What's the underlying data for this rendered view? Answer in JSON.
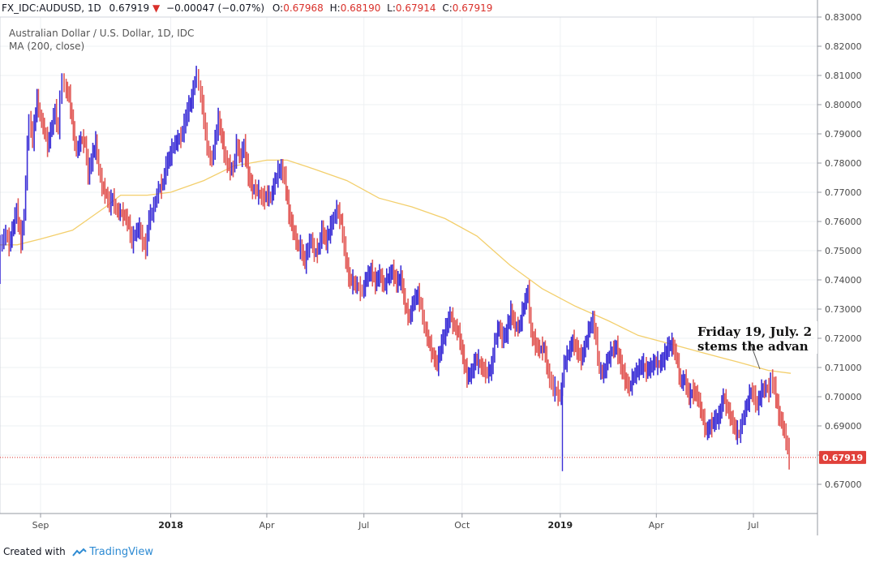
{
  "header": {
    "symbol": "FX_IDC:AUDUSD, 1D",
    "last": "0.67919",
    "change_arrow": "▼",
    "change": "−0.00047 (−0.07%)",
    "o_label": "O:",
    "o": "0.67968",
    "h_label": "H:",
    "h": "0.68190",
    "l_label": "L:",
    "l": "0.67914",
    "c_label": "C:",
    "c": "0.67919"
  },
  "legend": {
    "title": "Australian Dollar / U.S. Dollar, 1D, IDC",
    "indicator": "MA (200, close)"
  },
  "annotation": {
    "line1": "Friday 19, July. 2",
    "line2": "stems the advan"
  },
  "footer": {
    "created_with": "Created with",
    "brand": "TradingView",
    "icon": "tradingview-logo-icon"
  },
  "colors": {
    "up": "#3b2ed6",
    "down": "#e25a57",
    "ma": "#f3cf6c",
    "price_line": "#d9302a",
    "price_label_bg": "#e0403a",
    "grid": "#eef0f3",
    "axis": "#9598a1"
  },
  "chart_data": {
    "type": "line",
    "title": "Australian Dollar / U.S. Dollar, 1D, IDC",
    "y_axis_position": "right",
    "ylim": [
      0.66,
      0.83
    ],
    "y_ticks": [
      "0.83000",
      "0.82000",
      "0.81000",
      "0.80000",
      "0.79000",
      "0.78000",
      "0.77000",
      "0.76000",
      "0.75000",
      "0.74000",
      "0.73000",
      "0.72000",
      "0.71000",
      "0.70000",
      "0.69000",
      "0.68000",
      "0.67000"
    ],
    "x_range": [
      "2017-07-25",
      "2019-08-30"
    ],
    "x_ticks": [
      {
        "label": "Sep",
        "date": "2017-09-01",
        "bold": false
      },
      {
        "label": "2018",
        "date": "2018-01-01",
        "bold": true
      },
      {
        "label": "Apr",
        "date": "2018-04-01",
        "bold": false
      },
      {
        "label": "Jul",
        "date": "2018-07-01",
        "bold": false
      },
      {
        "label": "Oct",
        "date": "2018-10-01",
        "bold": false
      },
      {
        "label": "2019",
        "date": "2019-01-01",
        "bold": true
      },
      {
        "label": "Apr",
        "date": "2019-04-01",
        "bold": false
      },
      {
        "label": "Jul",
        "date": "2019-07-01",
        "bold": false
      }
    ],
    "last_price": 0.67919,
    "last_price_label": "0.67919",
    "grid": true,
    "series": [
      {
        "name": "AUDUSD",
        "style": "close",
        "points": [
          [
            "2017-07-25",
            0.742
          ],
          [
            "2017-07-27",
            0.752
          ],
          [
            "2017-08-01",
            0.756
          ],
          [
            "2017-08-04",
            0.752
          ],
          [
            "2017-08-08",
            0.759
          ],
          [
            "2017-08-11",
            0.764
          ],
          [
            "2017-08-15",
            0.753
          ],
          [
            "2017-08-18",
            0.762
          ],
          [
            "2017-08-21",
            0.786
          ],
          [
            "2017-08-23",
            0.795
          ],
          [
            "2017-08-26",
            0.788
          ],
          [
            "2017-08-30",
            0.802
          ],
          [
            "2017-09-02",
            0.796
          ],
          [
            "2017-09-06",
            0.791
          ],
          [
            "2017-09-09",
            0.786
          ],
          [
            "2017-09-13",
            0.793
          ],
          [
            "2017-09-16",
            0.798
          ],
          [
            "2017-09-19",
            0.791
          ],
          [
            "2017-09-21",
            0.802
          ],
          [
            "2017-09-23",
            0.809
          ],
          [
            "2017-09-25",
            0.806
          ],
          [
            "2017-09-29",
            0.803
          ],
          [
            "2017-10-03",
            0.791
          ],
          [
            "2017-10-06",
            0.784
          ],
          [
            "2017-10-10",
            0.788
          ],
          [
            "2017-10-14",
            0.787
          ],
          [
            "2017-10-17",
            0.776
          ],
          [
            "2017-10-20",
            0.781
          ],
          [
            "2017-10-24",
            0.787
          ],
          [
            "2017-10-27",
            0.778
          ],
          [
            "2017-10-30",
            0.772
          ],
          [
            "2017-11-03",
            0.769
          ],
          [
            "2017-11-06",
            0.766
          ],
          [
            "2017-11-09",
            0.768
          ],
          [
            "2017-11-12",
            0.764
          ],
          [
            "2017-11-16",
            0.763
          ],
          [
            "2017-11-20",
            0.762
          ],
          [
            "2017-11-24",
            0.759
          ],
          [
            "2017-11-27",
            0.753
          ],
          [
            "2017-11-30",
            0.756
          ],
          [
            "2017-12-04",
            0.758
          ],
          [
            "2017-12-07",
            0.753
          ],
          [
            "2017-12-10",
            0.751
          ],
          [
            "2017-12-13",
            0.761
          ],
          [
            "2017-12-16",
            0.763
          ],
          [
            "2017-12-19",
            0.767
          ],
          [
            "2017-12-22",
            0.771
          ],
          [
            "2017-12-26",
            0.773
          ],
          [
            "2017-12-29",
            0.779
          ],
          [
            "2018-01-02",
            0.783
          ],
          [
            "2018-01-05",
            0.786
          ],
          [
            "2018-01-09",
            0.788
          ],
          [
            "2018-01-12",
            0.789
          ],
          [
            "2018-01-15",
            0.793
          ],
          [
            "2018-01-18",
            0.798
          ],
          [
            "2018-01-22",
            0.802
          ],
          [
            "2018-01-25",
            0.808
          ],
          [
            "2018-01-27",
            0.811
          ],
          [
            "2018-01-29",
            0.806
          ],
          [
            "2018-02-01",
            0.8
          ],
          [
            "2018-02-04",
            0.79
          ],
          [
            "2018-02-07",
            0.783
          ],
          [
            "2018-02-10",
            0.781
          ],
          [
            "2018-02-13",
            0.788
          ],
          [
            "2018-02-16",
            0.795
          ],
          [
            "2018-02-20",
            0.787
          ],
          [
            "2018-02-23",
            0.781
          ],
          [
            "2018-02-27",
            0.778
          ],
          [
            "2018-03-02",
            0.778
          ],
          [
            "2018-03-05",
            0.786
          ],
          [
            "2018-03-09",
            0.782
          ],
          [
            "2018-03-12",
            0.786
          ],
          [
            "2018-03-16",
            0.776
          ],
          [
            "2018-03-20",
            0.771
          ],
          [
            "2018-03-23",
            0.771
          ],
          [
            "2018-03-27",
            0.769
          ],
          [
            "2018-03-30",
            0.768
          ],
          [
            "2018-04-03",
            0.769
          ],
          [
            "2018-04-06",
            0.768
          ],
          [
            "2018-04-10",
            0.774
          ],
          [
            "2018-04-13",
            0.777
          ],
          [
            "2018-04-16",
            0.778
          ],
          [
            "2018-04-19",
            0.775
          ],
          [
            "2018-04-23",
            0.763
          ],
          [
            "2018-04-27",
            0.757
          ],
          [
            "2018-05-01",
            0.752
          ],
          [
            "2018-05-04",
            0.751
          ],
          [
            "2018-05-08",
            0.746
          ],
          [
            "2018-05-11",
            0.751
          ],
          [
            "2018-05-14",
            0.754
          ],
          [
            "2018-05-17",
            0.749
          ],
          [
            "2018-05-21",
            0.751
          ],
          [
            "2018-05-24",
            0.757
          ],
          [
            "2018-05-28",
            0.753
          ],
          [
            "2018-06-01",
            0.758
          ],
          [
            "2018-06-04",
            0.761
          ],
          [
            "2018-06-07",
            0.764
          ],
          [
            "2018-06-11",
            0.76
          ],
          [
            "2018-06-14",
            0.751
          ],
          [
            "2018-06-18",
            0.741
          ],
          [
            "2018-06-22",
            0.739
          ],
          [
            "2018-06-26",
            0.738
          ],
          [
            "2018-07-01",
            0.736
          ],
          [
            "2018-07-05",
            0.741
          ],
          [
            "2018-07-09",
            0.743
          ],
          [
            "2018-07-13",
            0.739
          ],
          [
            "2018-07-17",
            0.742
          ],
          [
            "2018-07-21",
            0.738
          ],
          [
            "2018-07-25",
            0.741
          ],
          [
            "2018-07-29",
            0.743
          ],
          [
            "2018-08-02",
            0.739
          ],
          [
            "2018-08-06",
            0.741
          ],
          [
            "2018-08-10",
            0.731
          ],
          [
            "2018-08-14",
            0.727
          ],
          [
            "2018-08-18",
            0.733
          ],
          [
            "2018-08-22",
            0.735
          ],
          [
            "2018-08-25",
            0.731
          ],
          [
            "2018-08-28",
            0.724
          ],
          [
            "2018-09-01",
            0.719
          ],
          [
            "2018-09-05",
            0.714
          ],
          [
            "2018-09-09",
            0.711
          ],
          [
            "2018-09-13",
            0.718
          ],
          [
            "2018-09-17",
            0.723
          ],
          [
            "2018-09-21",
            0.728
          ],
          [
            "2018-09-25",
            0.724
          ],
          [
            "2018-09-29",
            0.722
          ],
          [
            "2018-10-03",
            0.714
          ],
          [
            "2018-10-07",
            0.707
          ],
          [
            "2018-10-11",
            0.708
          ],
          [
            "2018-10-15",
            0.713
          ],
          [
            "2018-10-19",
            0.711
          ],
          [
            "2018-10-23",
            0.709
          ],
          [
            "2018-10-26",
            0.708
          ],
          [
            "2018-10-30",
            0.71
          ],
          [
            "2018-11-02",
            0.719
          ],
          [
            "2018-11-06",
            0.724
          ],
          [
            "2018-11-09",
            0.72
          ],
          [
            "2018-11-13",
            0.722
          ],
          [
            "2018-11-17",
            0.729
          ],
          [
            "2018-11-21",
            0.724
          ],
          [
            "2018-11-25",
            0.724
          ],
          [
            "2018-11-29",
            0.731
          ],
          [
            "2018-12-03",
            0.736
          ],
          [
            "2018-12-06",
            0.722
          ],
          [
            "2018-12-10",
            0.718
          ],
          [
            "2018-12-14",
            0.716
          ],
          [
            "2018-12-18",
            0.717
          ],
          [
            "2018-12-22",
            0.708
          ],
          [
            "2018-12-27",
            0.703
          ],
          [
            "2019-01-02",
            0.7
          ],
          [
            "2019-01-03",
            0.702
          ],
          [
            "2019-01-06",
            0.711
          ],
          [
            "2019-01-10",
            0.715
          ],
          [
            "2019-01-14",
            0.719
          ],
          [
            "2019-01-18",
            0.716
          ],
          [
            "2019-01-22",
            0.713
          ],
          [
            "2019-01-26",
            0.718
          ],
          [
            "2019-01-30",
            0.724
          ],
          [
            "2019-02-02",
            0.726
          ],
          [
            "2019-02-05",
            0.72
          ],
          [
            "2019-02-08",
            0.709
          ],
          [
            "2019-02-12",
            0.708
          ],
          [
            "2019-02-16",
            0.713
          ],
          [
            "2019-02-20",
            0.716
          ],
          [
            "2019-02-24",
            0.717
          ],
          [
            "2019-02-28",
            0.711
          ],
          [
            "2019-03-04",
            0.706
          ],
          [
            "2019-03-08",
            0.703
          ],
          [
            "2019-03-12",
            0.707
          ],
          [
            "2019-03-16",
            0.709
          ],
          [
            "2019-03-20",
            0.711
          ],
          [
            "2019-03-24",
            0.709
          ],
          [
            "2019-03-28",
            0.71
          ],
          [
            "2019-04-01",
            0.712
          ],
          [
            "2019-04-05",
            0.711
          ],
          [
            "2019-04-09",
            0.713
          ],
          [
            "2019-04-13",
            0.717
          ],
          [
            "2019-04-17",
            0.718
          ],
          [
            "2019-04-21",
            0.714
          ],
          [
            "2019-04-25",
            0.705
          ],
          [
            "2019-04-29",
            0.706
          ],
          [
            "2019-05-03",
            0.7
          ],
          [
            "2019-05-07",
            0.702
          ],
          [
            "2019-05-11",
            0.7
          ],
          [
            "2019-05-15",
            0.694
          ],
          [
            "2019-05-19",
            0.688
          ],
          [
            "2019-05-23",
            0.69
          ],
          [
            "2019-05-27",
            0.692
          ],
          [
            "2019-05-31",
            0.693
          ],
          [
            "2019-06-04",
            0.7
          ],
          [
            "2019-06-08",
            0.696
          ],
          [
            "2019-06-12",
            0.692
          ],
          [
            "2019-06-16",
            0.688
          ],
          [
            "2019-06-19",
            0.687
          ],
          [
            "2019-06-22",
            0.692
          ],
          [
            "2019-06-26",
            0.697
          ],
          [
            "2019-06-30",
            0.702
          ],
          [
            "2019-07-03",
            0.7
          ],
          [
            "2019-07-06",
            0.697
          ],
          [
            "2019-07-10",
            0.702
          ],
          [
            "2019-07-14",
            0.703
          ],
          [
            "2019-07-17",
            0.702
          ],
          [
            "2019-07-19",
            0.706
          ],
          [
            "2019-07-22",
            0.703
          ],
          [
            "2019-07-26",
            0.694
          ],
          [
            "2019-07-30",
            0.69
          ],
          [
            "2019-08-02",
            0.685
          ],
          [
            "2019-08-05",
            0.679
          ]
        ]
      },
      {
        "name": "MA (200, close)",
        "style": "line",
        "points": [
          [
            "2017-07-25",
            0.752
          ],
          [
            "2017-08-10",
            0.752
          ],
          [
            "2017-09-01",
            0.754
          ],
          [
            "2017-10-01",
            0.757
          ],
          [
            "2017-11-01",
            0.765
          ],
          [
            "2017-11-15",
            0.769
          ],
          [
            "2017-12-10",
            0.769
          ],
          [
            "2018-01-01",
            0.77
          ],
          [
            "2018-02-01",
            0.774
          ],
          [
            "2018-03-01",
            0.779
          ],
          [
            "2018-04-01",
            0.781
          ],
          [
            "2018-04-20",
            0.781
          ],
          [
            "2018-05-15",
            0.778
          ],
          [
            "2018-06-15",
            0.774
          ],
          [
            "2018-07-15",
            0.768
          ],
          [
            "2018-08-15",
            0.765
          ],
          [
            "2018-09-15",
            0.761
          ],
          [
            "2018-10-15",
            0.755
          ],
          [
            "2018-11-15",
            0.745
          ],
          [
            "2018-12-15",
            0.737
          ],
          [
            "2019-01-15",
            0.731
          ],
          [
            "2019-02-15",
            0.726
          ],
          [
            "2019-03-15",
            0.721
          ],
          [
            "2019-04-15",
            0.718
          ],
          [
            "2019-05-15",
            0.715
          ],
          [
            "2019-06-15",
            0.712
          ],
          [
            "2019-07-15",
            0.709
          ],
          [
            "2019-08-05",
            0.708
          ]
        ]
      }
    ]
  }
}
